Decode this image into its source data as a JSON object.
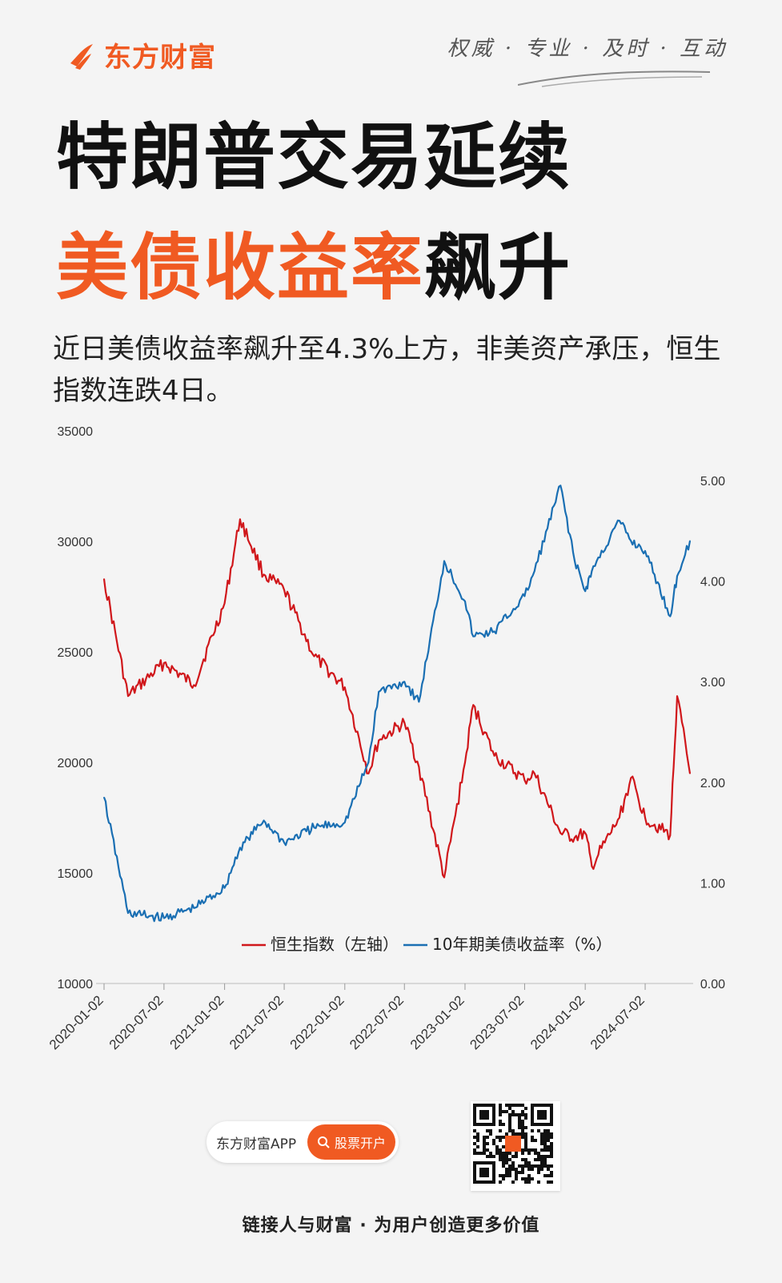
{
  "brand": {
    "name": "东方财富",
    "slogan": "权威 · 专业 · 及时 · 互动",
    "accent": "#f05a22"
  },
  "headline": {
    "line1": "特朗普交易延续",
    "line2_highlight": "美债收益率",
    "line2_rest": "飙升"
  },
  "subtitle": "近日美债收益率飙升至4.3%上方，非美资产承压，恒生指数连跌4日。",
  "chart_data": {
    "type": "line",
    "x": [
      "2020-01-02",
      "2020-03-15",
      "2020-07-02",
      "2020-10-01",
      "2021-01-02",
      "2021-02-18",
      "2021-05-01",
      "2021-07-02",
      "2021-10-01",
      "2022-01-02",
      "2022-03-15",
      "2022-04-15",
      "2022-07-02",
      "2022-08-15",
      "2022-10-31",
      "2023-01-02",
      "2023-01-27",
      "2023-04-01",
      "2023-07-02",
      "2023-08-01",
      "2023-10-19",
      "2023-12-01",
      "2024-01-02",
      "2024-01-22",
      "2024-04-15",
      "2024-05-20",
      "2024-07-02",
      "2024-09-16",
      "2024-10-07",
      "2024-11-15"
    ],
    "x_ticks": [
      "2020-01-02",
      "2020-07-02",
      "2021-01-02",
      "2021-07-02",
      "2022-01-02",
      "2022-07-02",
      "2023-01-02",
      "2023-07-02",
      "2024-01-02",
      "2024-07-02"
    ],
    "series": [
      {
        "name": "恒生指数（左轴）",
        "axis": "left",
        "color": "#d0171b",
        "values": [
          28300,
          23000,
          24500,
          23500,
          27200,
          31000,
          28500,
          27800,
          24800,
          23400,
          19500,
          21000,
          21800,
          19800,
          14800,
          20000,
          22600,
          20300,
          19200,
          19500,
          16800,
          16600,
          16800,
          15300,
          17500,
          19300,
          17500,
          16700,
          23000,
          19500
        ]
      },
      {
        "name": "10年期美债收益率（%）",
        "axis": "right",
        "color": "#1a6fb3",
        "values": [
          1.85,
          0.7,
          0.65,
          0.75,
          0.95,
          1.35,
          1.62,
          1.4,
          1.55,
          1.6,
          2.2,
          2.9,
          3.0,
          2.8,
          4.2,
          3.8,
          3.45,
          3.5,
          3.85,
          4.1,
          4.95,
          4.2,
          3.9,
          4.1,
          4.6,
          4.4,
          4.3,
          3.65,
          4.05,
          4.4
        ]
      }
    ],
    "y_left": {
      "min": 10000,
      "max": 35000,
      "ticks": [
        "10000",
        "15000",
        "20000",
        "25000",
        "30000",
        "35000"
      ]
    },
    "y_right": {
      "min": 0,
      "max": 5,
      "ticks": [
        "0.00",
        "1.00",
        "2.00",
        "3.00",
        "4.00",
        "5.00"
      ]
    },
    "legend": {
      "position": "bottom-center"
    },
    "grid": false
  },
  "app": {
    "name": "东方财富APP",
    "button": "股票开户",
    "button_icon": "search-icon"
  },
  "footer": "链接人与财富 · 为用户创造更多价值"
}
